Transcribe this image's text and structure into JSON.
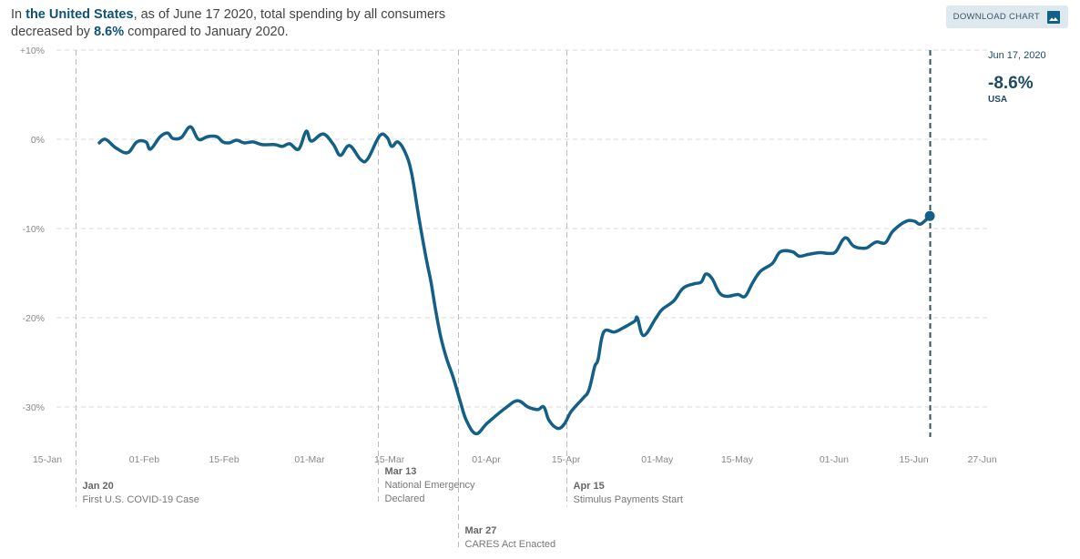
{
  "headline": {
    "prefix": "In ",
    "region": "the United States",
    "mid1": ", as of June 17 2020, total spending by all consumers decreased by ",
    "change": "8.6%",
    "suffix": " compared to January 2020."
  },
  "toolbar": {
    "download_label": "DOWNLOAD CHART",
    "download_icon": "image-icon"
  },
  "readout": {
    "date": "Jun 17, 2020",
    "value": "-8.6%",
    "region": "USA"
  },
  "colors": {
    "line": "#135f86",
    "grid": "#d9d9d9",
    "event_line": "#bbbbbb",
    "current_line": "#2c5466"
  },
  "chart_data": {
    "type": "line",
    "title": "Total spending by all consumers, change vs. January 2020",
    "xlabel": "",
    "ylabel": "",
    "x_start_date": "2020-01-15",
    "x_unit": "days since 15-Jan",
    "xlim": [
      0,
      164
    ],
    "ylim": [
      -34,
      10
    ],
    "y_ticks": [
      {
        "value": 10,
        "label": "+10%"
      },
      {
        "value": 0,
        "label": "0%"
      },
      {
        "value": -10,
        "label": "-10%"
      },
      {
        "value": -20,
        "label": "-20%"
      },
      {
        "value": -30,
        "label": "-30%"
      }
    ],
    "x_ticks": [
      {
        "day": 0,
        "label": "15-Jan"
      },
      {
        "day": 17,
        "label": "01-Feb"
      },
      {
        "day": 31,
        "label": "15-Feb"
      },
      {
        "day": 46,
        "label": "01-Mar"
      },
      {
        "day": 60,
        "label": "15-Mar"
      },
      {
        "day": 77,
        "label": "01-Apr"
      },
      {
        "day": 91,
        "label": "15-Apr"
      },
      {
        "day": 107,
        "label": "01-May"
      },
      {
        "day": 121,
        "label": "15-May"
      },
      {
        "day": 138,
        "label": "01-Jun"
      },
      {
        "day": 152,
        "label": "15-Jun"
      },
      {
        "day": 164,
        "label": "27-Jun"
      }
    ],
    "grid": true,
    "series": [
      {
        "name": "USA",
        "x": [
          9.1,
          10.2,
          12.1,
          14.1,
          15.7,
          17.3,
          18.1,
          19.8,
          21.1,
          22.0,
          23.5,
          25.1,
          26.5,
          28.1,
          29.7,
          30.8,
          31.9,
          33.2,
          34.5,
          36.1,
          37.7,
          39.9,
          41.2,
          42.5,
          44.1,
          45.4,
          46.3,
          48.4,
          50.2,
          51.4,
          53.0,
          55.0,
          56.2,
          58.3,
          59.6,
          60.4,
          61.5,
          62.8,
          63.9,
          65.2,
          66.5,
          67.3,
          68.1,
          69.0,
          70.0,
          71.2,
          72.4,
          73.5,
          75.2,
          77.2,
          80.4,
          82.5,
          84.3,
          86.0,
          87.1,
          88.0,
          89.5,
          90.7,
          91.9,
          94.0,
          95.0,
          96.0,
          96.6,
          97.6,
          99.5,
          101.1,
          103.0,
          103.5,
          104.6,
          106.7,
          107.8,
          109.9,
          111.5,
          113.4,
          114.7,
          115.5,
          116.6,
          117.9,
          119.2,
          121.1,
          122.4,
          123.7,
          125.1,
          127.2,
          128.6,
          130.7,
          131.9,
          133.5,
          135.5,
          137.1,
          138.3,
          139.5,
          140.3,
          141.5,
          143.5,
          144.6,
          145.5,
          147.0,
          148.2,
          149.8,
          151.1,
          152.2,
          153.2,
          154.8
        ],
        "values": [
          -0.4,
          0.0,
          -1.0,
          -1.5,
          -0.3,
          -0.3,
          -1.1,
          0.3,
          0.7,
          0.1,
          0.2,
          1.4,
          0.0,
          0.3,
          0.3,
          -0.3,
          -0.4,
          -0.1,
          -0.4,
          -0.3,
          -0.6,
          -0.6,
          -0.8,
          -0.5,
          -1.1,
          0.9,
          -0.2,
          0.6,
          -0.6,
          -1.8,
          -0.7,
          -2.3,
          -2.2,
          0.4,
          0.2,
          -0.8,
          -0.3,
          -1.5,
          -3.8,
          -8.9,
          -13.5,
          -16.0,
          -19.1,
          -22.1,
          -24.5,
          -26.7,
          -29.3,
          -31.5,
          -33.0,
          -31.8,
          -30.1,
          -29.3,
          -30.0,
          -30.3,
          -30.0,
          -31.5,
          -32.4,
          -31.9,
          -30.5,
          -29.0,
          -28.1,
          -25.5,
          -24.7,
          -21.6,
          -21.6,
          -21.1,
          -20.4,
          -20.0,
          -22.0,
          -20.1,
          -19.1,
          -18.1,
          -16.7,
          -16.2,
          -16.0,
          -15.1,
          -15.6,
          -17.2,
          -17.6,
          -17.4,
          -17.6,
          -16.1,
          -14.8,
          -13.9,
          -12.6,
          -12.6,
          -13.1,
          -12.9,
          -12.7,
          -12.8,
          -12.6,
          -11.3,
          -11.1,
          -12.0,
          -12.2,
          -11.8,
          -11.5,
          -11.6,
          -10.4,
          -9.5,
          -9.1,
          -9.2,
          -9.5,
          -8.6
        ]
      }
    ],
    "current_point": {
      "day": 154.8,
      "value": -8.6,
      "label": "Jun 17, 2020"
    },
    "annotations": [
      {
        "day": 5,
        "date": "Jan 20",
        "lines": [
          "First U.S. COVID-19 Case"
        ],
        "row": 0
      },
      {
        "day": 58,
        "date": "Mar 13",
        "lines": [
          "National Emergency",
          "Declared"
        ],
        "row": -1
      },
      {
        "day": 72,
        "date": "Mar 27",
        "lines": [
          "CARES Act Enacted"
        ],
        "row": 1
      },
      {
        "day": 91,
        "date": "Apr 15",
        "lines": [
          "Stimulus Payments Start"
        ],
        "row": 0
      }
    ]
  }
}
